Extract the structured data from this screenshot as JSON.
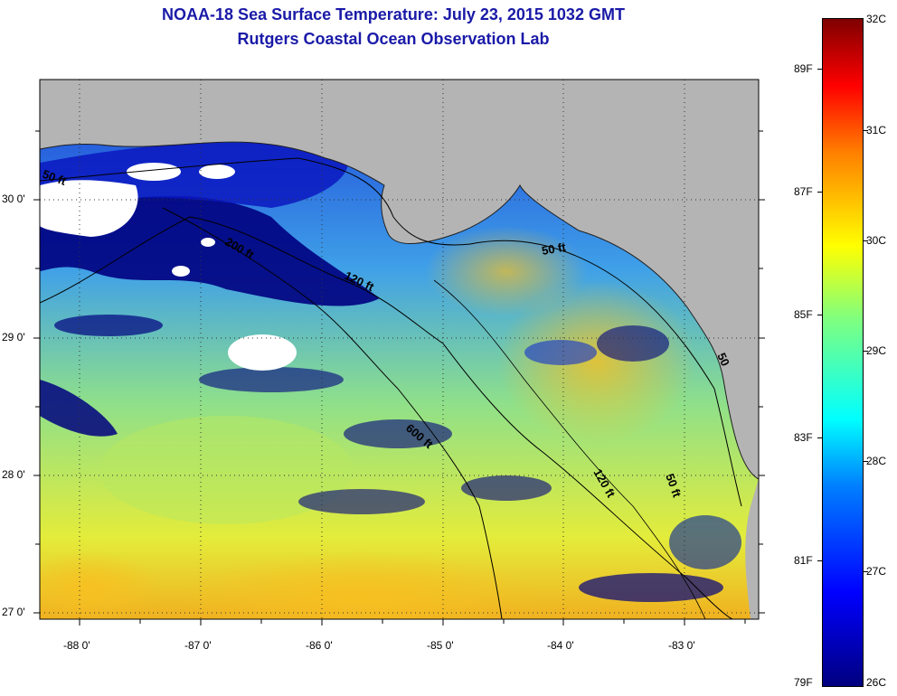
{
  "title": {
    "line1": "NOAA-18 Sea Surface Temperature:  July 23, 2015 1032 GMT",
    "line2": "Rutgers Coastal Ocean Observation Lab"
  },
  "axes": {
    "latitude_labels": [
      "30 0'",
      "29 0'",
      "28 0'",
      "27 0'"
    ],
    "latitude_values": [
      30,
      29,
      28,
      27
    ],
    "longitude_labels": [
      "-88 0'",
      "-87 0'",
      "-86 0'",
      "-85 0'",
      "-84 0'",
      "-83 0'"
    ],
    "longitude_values": [
      -88,
      -87,
      -86,
      -85,
      -84,
      -83
    ],
    "lat_range": [
      26.97,
      30.85
    ],
    "lon_range": [
      -88.33,
      -82.33
    ]
  },
  "contours": {
    "labels": [
      "50 ft",
      "200 ft",
      "120 ft",
      "50 ft",
      "600 ft",
      "120 ft",
      "50 ft",
      "50"
    ]
  },
  "colorbar": {
    "celsius_labels": [
      "32C",
      "31C",
      "30C",
      "29C",
      "28C",
      "27C",
      "26C"
    ],
    "fahrenheit_labels": [
      "89F",
      "87F",
      "85F",
      "83F",
      "81F",
      "79F"
    ],
    "celsius_range": [
      26,
      32
    ]
  },
  "colors": {
    "land": "#b4b4b4",
    "cloud": "#ffffff",
    "title": "#1a1aa8",
    "cold": "#00007f",
    "warm": "#7f0000"
  }
}
